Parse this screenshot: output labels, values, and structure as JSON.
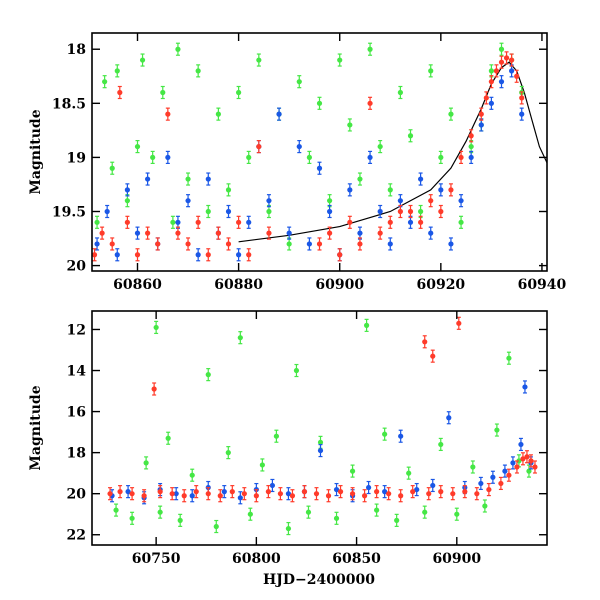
{
  "colors": {
    "green": "#45e745",
    "blue": "#1a57e6",
    "red": "#ff3b2a",
    "model": "#000000",
    "axis": "#000000"
  },
  "chart_data": [
    {
      "type": "scatter",
      "title": "",
      "xlabel": "",
      "ylabel": "Magnitude",
      "xlim": [
        60851,
        60941
      ],
      "ylim": [
        20.05,
        17.85
      ],
      "y_inverted": true,
      "xticks": [
        60860,
        60880,
        60900,
        60920,
        60940
      ],
      "yticks": [
        18,
        18.5,
        19,
        19.5,
        20
      ],
      "xtick_labels": [
        "60860",
        "60880",
        "60900",
        "60920",
        "60940"
      ],
      "ytick_labels": [
        "18",
        "18.5",
        "19",
        "19.5",
        "20"
      ],
      "grid": false,
      "series": [
        {
          "color": "green",
          "points": [
            [
              60852,
              19.6
            ],
            [
              60853.5,
              18.3
            ],
            [
              60855,
              19.1
            ],
            [
              60856,
              18.2
            ],
            [
              60858,
              19.4
            ],
            [
              60860,
              18.9
            ],
            [
              60861,
              18.1
            ],
            [
              60863,
              19.0
            ],
            [
              60865,
              18.4
            ],
            [
              60867,
              19.6
            ],
            [
              60868,
              18.0
            ],
            [
              60870,
              19.2
            ],
            [
              60872,
              18.2
            ],
            [
              60874,
              19.5
            ],
            [
              60876,
              18.6
            ],
            [
              60878,
              19.3
            ],
            [
              60880,
              18.4
            ],
            [
              60882,
              19.0
            ],
            [
              60884,
              18.1
            ],
            [
              60886,
              19.5
            ],
            [
              60888,
              18.6
            ],
            [
              60890,
              19.8
            ],
            [
              60892,
              18.3
            ],
            [
              60894,
              19.0
            ],
            [
              60896,
              18.5
            ],
            [
              60898,
              19.4
            ],
            [
              60900,
              18.1
            ],
            [
              60902,
              18.7
            ],
            [
              60904,
              19.2
            ],
            [
              60906,
              18.0
            ],
            [
              60908,
              18.9
            ],
            [
              60910,
              19.3
            ],
            [
              60912,
              18.4
            ],
            [
              60914,
              18.8
            ],
            [
              60916,
              19.5
            ],
            [
              60918,
              18.2
            ],
            [
              60920,
              19.0
            ],
            [
              60922,
              18.6
            ],
            [
              60924,
              19.6
            ],
            [
              60926,
              18.9
            ],
            [
              60928,
              18.7
            ],
            [
              60930,
              18.2
            ],
            [
              60932,
              18.0
            ],
            [
              60934,
              18.1
            ],
            [
              60936,
              18.4
            ]
          ]
        },
        {
          "color": "blue",
          "points": [
            [
              60852,
              19.8
            ],
            [
              60854,
              19.5
            ],
            [
              60856,
              19.9
            ],
            [
              60858,
              19.3
            ],
            [
              60860,
              19.7
            ],
            [
              60862,
              19.2
            ],
            [
              60864,
              19.8
            ],
            [
              60866,
              19.0
            ],
            [
              60868,
              19.6
            ],
            [
              60870,
              19.4
            ],
            [
              60872,
              19.9
            ],
            [
              60874,
              19.2
            ],
            [
              60876,
              19.7
            ],
            [
              60878,
              19.5
            ],
            [
              60880,
              19.9
            ],
            [
              60882,
              19.6
            ],
            [
              60884,
              18.9
            ],
            [
              60886,
              19.4
            ],
            [
              60888,
              18.6
            ],
            [
              60890,
              19.7
            ],
            [
              60892,
              18.9
            ],
            [
              60894,
              19.8
            ],
            [
              60896,
              19.1
            ],
            [
              60898,
              19.5
            ],
            [
              60900,
              19.9
            ],
            [
              60902,
              19.3
            ],
            [
              60904,
              19.7
            ],
            [
              60906,
              19.0
            ],
            [
              60908,
              19.5
            ],
            [
              60910,
              19.8
            ],
            [
              60912,
              19.4
            ],
            [
              60914,
              19.6
            ],
            [
              60916,
              19.2
            ],
            [
              60918,
              19.7
            ],
            [
              60920,
              19.3
            ],
            [
              60922,
              19.8
            ],
            [
              60924,
              19.4
            ],
            [
              60926,
              19.0
            ],
            [
              60928,
              18.7
            ],
            [
              60930,
              18.5
            ],
            [
              60932,
              18.3
            ],
            [
              60934,
              18.2
            ],
            [
              60936,
              18.6
            ]
          ]
        },
        {
          "color": "red",
          "points": [
            [
              60851.5,
              19.9
            ],
            [
              60853,
              19.7
            ],
            [
              60855,
              19.8
            ],
            [
              60856.5,
              18.4
            ],
            [
              60858,
              19.6
            ],
            [
              60860,
              19.9
            ],
            [
              60862,
              19.7
            ],
            [
              60864,
              19.8
            ],
            [
              60866,
              18.6
            ],
            [
              60868,
              19.7
            ],
            [
              60870,
              19.8
            ],
            [
              60872,
              19.6
            ],
            [
              60874,
              19.9
            ],
            [
              60876,
              19.7
            ],
            [
              60878,
              19.8
            ],
            [
              60880,
              19.6
            ],
            [
              60882,
              19.9
            ],
            [
              60884,
              18.9
            ],
            [
              60886,
              19.7
            ],
            [
              60896,
              19.8
            ],
            [
              60898,
              19.7
            ],
            [
              60900,
              19.9
            ],
            [
              60902,
              19.6
            ],
            [
              60904,
              19.8
            ],
            [
              60906,
              18.5
            ],
            [
              60908,
              19.7
            ],
            [
              60910,
              19.6
            ],
            [
              60912,
              19.5
            ],
            [
              60914,
              19.5
            ],
            [
              60916,
              19.6
            ],
            [
              60918,
              19.4
            ],
            [
              60920,
              19.5
            ],
            [
              60922,
              19.3
            ],
            [
              60924,
              19.0
            ],
            [
              60926,
              18.8
            ],
            [
              60928,
              18.6
            ],
            [
              60929,
              18.45
            ],
            [
              60930,
              18.3
            ],
            [
              60931,
              18.2
            ],
            [
              60932,
              18.12
            ],
            [
              60933,
              18.08
            ],
            [
              60934,
              18.1
            ],
            [
              60935,
              18.25
            ],
            [
              60936,
              18.45
            ]
          ]
        }
      ],
      "model_curve": [
        [
          60880,
          19.78
        ],
        [
          60890,
          19.72
        ],
        [
          60900,
          19.64
        ],
        [
          60910,
          19.5
        ],
        [
          60918,
          19.3
        ],
        [
          60922,
          19.1
        ],
        [
          60925,
          18.85
        ],
        [
          60928,
          18.55
        ],
        [
          60930,
          18.32
        ],
        [
          60932,
          18.17
        ],
        [
          60933.5,
          18.12
        ],
        [
          60935,
          18.2
        ],
        [
          60936.5,
          18.4
        ],
        [
          60938,
          18.65
        ],
        [
          60939.5,
          18.9
        ],
        [
          60941,
          19.05
        ]
      ]
    },
    {
      "type": "scatter",
      "title": "",
      "xlabel": "HJD−2400000",
      "ylabel": "Magnitude",
      "xlim": [
        60718,
        60945
      ],
      "ylim": [
        22.5,
        11.1
      ],
      "y_inverted": true,
      "xticks": [
        60750,
        60800,
        60850,
        60900
      ],
      "yticks": [
        12,
        14,
        16,
        18,
        20,
        22
      ],
      "xtick_labels": [
        "60750",
        "60800",
        "60850",
        "60900"
      ],
      "ytick_labels": [
        "12",
        "14",
        "16",
        "18",
        "20",
        "22"
      ],
      "grid": false,
      "series": [
        {
          "color": "green",
          "points": [
            [
              60730,
              20.8
            ],
            [
              60738,
              21.2
            ],
            [
              60745,
              18.5
            ],
            [
              60750,
              11.9
            ],
            [
              60752,
              20.9
            ],
            [
              60756,
              17.3
            ],
            [
              60762,
              21.3
            ],
            [
              60768,
              19.1
            ],
            [
              60776,
              14.2
            ],
            [
              60780,
              21.6
            ],
            [
              60786,
              18.0
            ],
            [
              60792,
              12.4
            ],
            [
              60797,
              21.0
            ],
            [
              60803,
              18.6
            ],
            [
              60810,
              17.2
            ],
            [
              60816,
              21.7
            ],
            [
              60820,
              14.0
            ],
            [
              60826,
              20.9
            ],
            [
              60832,
              17.5
            ],
            [
              60840,
              21.2
            ],
            [
              60848,
              18.9
            ],
            [
              60855,
              11.8
            ],
            [
              60860,
              20.8
            ],
            [
              60864,
              17.1
            ],
            [
              60870,
              21.3
            ],
            [
              60876,
              19.0
            ],
            [
              60884,
              20.9
            ],
            [
              60892,
              17.6
            ],
            [
              60900,
              21.0
            ],
            [
              60908,
              18.7
            ],
            [
              60914,
              20.6
            ],
            [
              60920,
              16.9
            ],
            [
              60926,
              13.4
            ],
            [
              60931,
              18.4
            ],
            [
              60936,
              18.9
            ]
          ]
        },
        {
          "color": "blue",
          "points": [
            [
              60728,
              20.1
            ],
            [
              60736,
              19.9
            ],
            [
              60744,
              20.2
            ],
            [
              60752,
              19.8
            ],
            [
              60760,
              20.0
            ],
            [
              60768,
              20.1
            ],
            [
              60776,
              19.7
            ],
            [
              60784,
              19.9
            ],
            [
              60792,
              20.2
            ],
            [
              60800,
              19.8
            ],
            [
              60808,
              19.6
            ],
            [
              60816,
              20.0
            ],
            [
              60824,
              19.9
            ],
            [
              60832,
              17.9
            ],
            [
              60840,
              19.8
            ],
            [
              60848,
              20.1
            ],
            [
              60856,
              19.7
            ],
            [
              60864,
              19.9
            ],
            [
              60872,
              17.2
            ],
            [
              60880,
              19.8
            ],
            [
              60888,
              19.6
            ],
            [
              60896,
              16.3
            ],
            [
              60904,
              19.7
            ],
            [
              60912,
              19.5
            ],
            [
              60918,
              19.2
            ],
            [
              60924,
              18.9
            ],
            [
              60928,
              18.5
            ],
            [
              60932,
              17.6
            ],
            [
              60934,
              14.8
            ],
            [
              60937,
              18.5
            ]
          ]
        },
        {
          "color": "red",
          "points": [
            [
              60727,
              20.0
            ],
            [
              60732,
              19.9
            ],
            [
              60738,
              20.0
            ],
            [
              60744,
              20.1
            ],
            [
              60749,
              14.9
            ],
            [
              60752,
              19.9
            ],
            [
              60758,
              20.0
            ],
            [
              60764,
              20.1
            ],
            [
              60770,
              19.9
            ],
            [
              60776,
              20.0
            ],
            [
              60782,
              20.1
            ],
            [
              60788,
              19.9
            ],
            [
              60794,
              20.0
            ],
            [
              60800,
              20.1
            ],
            [
              60806,
              19.9
            ],
            [
              60812,
              20.0
            ],
            [
              60818,
              20.1
            ],
            [
              60824,
              19.9
            ],
            [
              60830,
              20.0
            ],
            [
              60836,
              20.1
            ],
            [
              60842,
              19.9
            ],
            [
              60848,
              20.0
            ],
            [
              60854,
              20.1
            ],
            [
              60860,
              19.9
            ],
            [
              60866,
              20.0
            ],
            [
              60872,
              20.1
            ],
            [
              60878,
              19.9
            ],
            [
              60884,
              12.6
            ],
            [
              60886,
              20.0
            ],
            [
              60888,
              13.3
            ],
            [
              60892,
              19.9
            ],
            [
              60898,
              20.0
            ],
            [
              60901,
              11.7
            ],
            [
              60904,
              19.9
            ],
            [
              60910,
              20.0
            ],
            [
              60916,
              19.8
            ],
            [
              60922,
              19.5
            ],
            [
              60926,
              19.1
            ],
            [
              60930,
              18.7
            ],
            [
              60933,
              18.3
            ],
            [
              60935,
              18.2
            ],
            [
              60937,
              18.4
            ],
            [
              60939,
              18.7
            ]
          ]
        }
      ],
      "model_curve": []
    }
  ]
}
